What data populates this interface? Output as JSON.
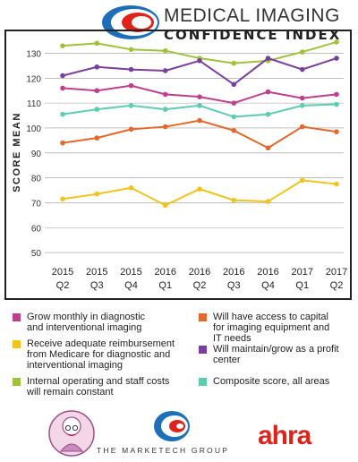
{
  "header": {
    "title_line1": "MEDICAL IMAGING",
    "title_line2": "CONFIDENCE INDEX"
  },
  "chart_data": {
    "type": "line",
    "ylabel": "SCORE MEAN",
    "ylim": [
      45,
      137
    ],
    "yticks": [
      50,
      60,
      70,
      80,
      90,
      100,
      110,
      120,
      130
    ],
    "grid": true,
    "categories": [
      {
        "year": "2015",
        "quarter": "Q2"
      },
      {
        "year": "2015",
        "quarter": "Q3"
      },
      {
        "year": "2015",
        "quarter": "Q4"
      },
      {
        "year": "2016",
        "quarter": "Q1"
      },
      {
        "year": "2016",
        "quarter": "Q2"
      },
      {
        "year": "2016",
        "quarter": "Q3"
      },
      {
        "year": "2016",
        "quarter": "Q4"
      },
      {
        "year": "2017",
        "quarter": "Q1"
      },
      {
        "year": "2017",
        "quarter": "Q2"
      }
    ],
    "series": [
      {
        "name": "Internal operating and staff costs will remain constant",
        "color": "#9ec33b",
        "values": [
          133,
          134,
          131.5,
          131,
          128,
          126,
          127,
          130.5,
          134.5
        ]
      },
      {
        "name": "Will maintain/grow as a profit center",
        "color": "#7a3e9c",
        "values": [
          121,
          124.5,
          123.5,
          123,
          127,
          117.5,
          128,
          123.5,
          128
        ]
      },
      {
        "name": "Grow monthly in diagnostic and interventional imaging",
        "color": "#bf3f8e",
        "values": [
          116,
          115,
          117,
          113.5,
          112.5,
          110,
          114.5,
          112,
          113.5
        ]
      },
      {
        "name": "Composite score, all areas",
        "color": "#5ecbb3",
        "values": [
          105.5,
          107.5,
          109,
          107.5,
          109,
          104.5,
          105.5,
          109,
          109.5
        ]
      },
      {
        "name": "Will have access to capital for imaging equipment and IT needs",
        "color": "#e3682a",
        "values": [
          94,
          96,
          99.5,
          100.5,
          103,
          99,
          92,
          100.5,
          98.5
        ]
      },
      {
        "name": "Receive adequate reimbursement from Medicare for diagnostic and interventional imaging",
        "color": "#f2c31a",
        "values": [
          71.5,
          73.5,
          76,
          69,
          75.5,
          71,
          70.5,
          79,
          77.5
        ]
      }
    ]
  },
  "legend": [
    {
      "label": "Grow monthly in diagnostic\nand interventional imaging",
      "color": "#bf3f8e"
    },
    {
      "label": "Will have access to capital\nfor imaging equipment and\nIT needs",
      "color": "#e3682a"
    },
    {
      "label": "Receive adequate reimbursement\nfrom Medicare for diagnostic and\ninterventional imaging",
      "color": "#f2c31a"
    },
    {
      "label": "Will maintain/grow as a profit\ncenter",
      "color": "#7a3e9c"
    },
    {
      "label": "Internal operating and staff costs\nwill remain constant",
      "color": "#9ec33b"
    },
    {
      "label": "Composite score, all areas",
      "color": "#5ecbb3"
    }
  ],
  "footer": {
    "marketech": "THE MARKETECH GROUP",
    "ahra": "ahra"
  }
}
